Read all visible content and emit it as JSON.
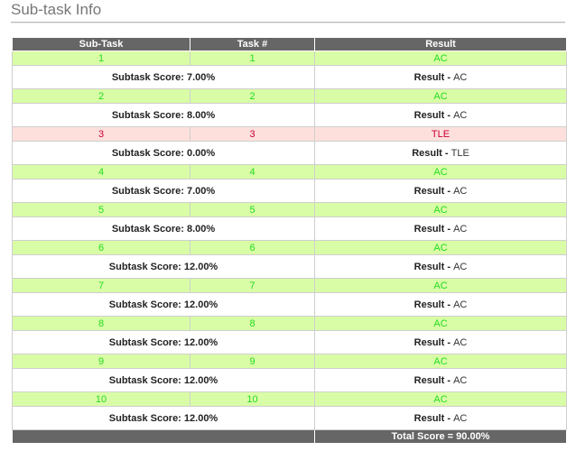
{
  "title": "Sub-task Info",
  "columns": [
    "Sub-Task",
    "Task #",
    "Result"
  ],
  "subtasks": [
    {
      "subtask": "1",
      "task": "1",
      "result": "AC",
      "status": "ac",
      "score_label": "Subtask Score: 7.00%",
      "result_label": "Result - ",
      "result_value": "AC"
    },
    {
      "subtask": "2",
      "task": "2",
      "result": "AC",
      "status": "ac",
      "score_label": "Subtask Score: 8.00%",
      "result_label": "Result - ",
      "result_value": "AC"
    },
    {
      "subtask": "3",
      "task": "3",
      "result": "TLE",
      "status": "tle",
      "score_label": "Subtask Score: 0.00%",
      "result_label": "Result - ",
      "result_value": "TLE"
    },
    {
      "subtask": "4",
      "task": "4",
      "result": "AC",
      "status": "ac",
      "score_label": "Subtask Score: 7.00%",
      "result_label": "Result - ",
      "result_value": "AC"
    },
    {
      "subtask": "5",
      "task": "5",
      "result": "AC",
      "status": "ac",
      "score_label": "Subtask Score: 8.00%",
      "result_label": "Result - ",
      "result_value": "AC"
    },
    {
      "subtask": "6",
      "task": "6",
      "result": "AC",
      "status": "ac",
      "score_label": "Subtask Score: 12.00%",
      "result_label": "Result - ",
      "result_value": "AC"
    },
    {
      "subtask": "7",
      "task": "7",
      "result": "AC",
      "status": "ac",
      "score_label": "Subtask Score: 12.00%",
      "result_label": "Result - ",
      "result_value": "AC"
    },
    {
      "subtask": "8",
      "task": "8",
      "result": "AC",
      "status": "ac",
      "score_label": "Subtask Score: 12.00%",
      "result_label": "Result - ",
      "result_value": "AC"
    },
    {
      "subtask": "9",
      "task": "9",
      "result": "AC",
      "status": "ac",
      "score_label": "Subtask Score: 12.00%",
      "result_label": "Result - ",
      "result_value": "AC"
    },
    {
      "subtask": "10",
      "task": "10",
      "result": "AC",
      "status": "ac",
      "score_label": "Subtask Score: 12.00%",
      "result_label": "Result - ",
      "result_value": "AC"
    }
  ],
  "total": "Total Score = 90.00%",
  "colors": {
    "ac_bg": "#d9fca6",
    "ac_text": "#22dd22",
    "tle_bg": "#fde0dc",
    "tle_text": "#cc0033",
    "header_bg": "#666666"
  }
}
